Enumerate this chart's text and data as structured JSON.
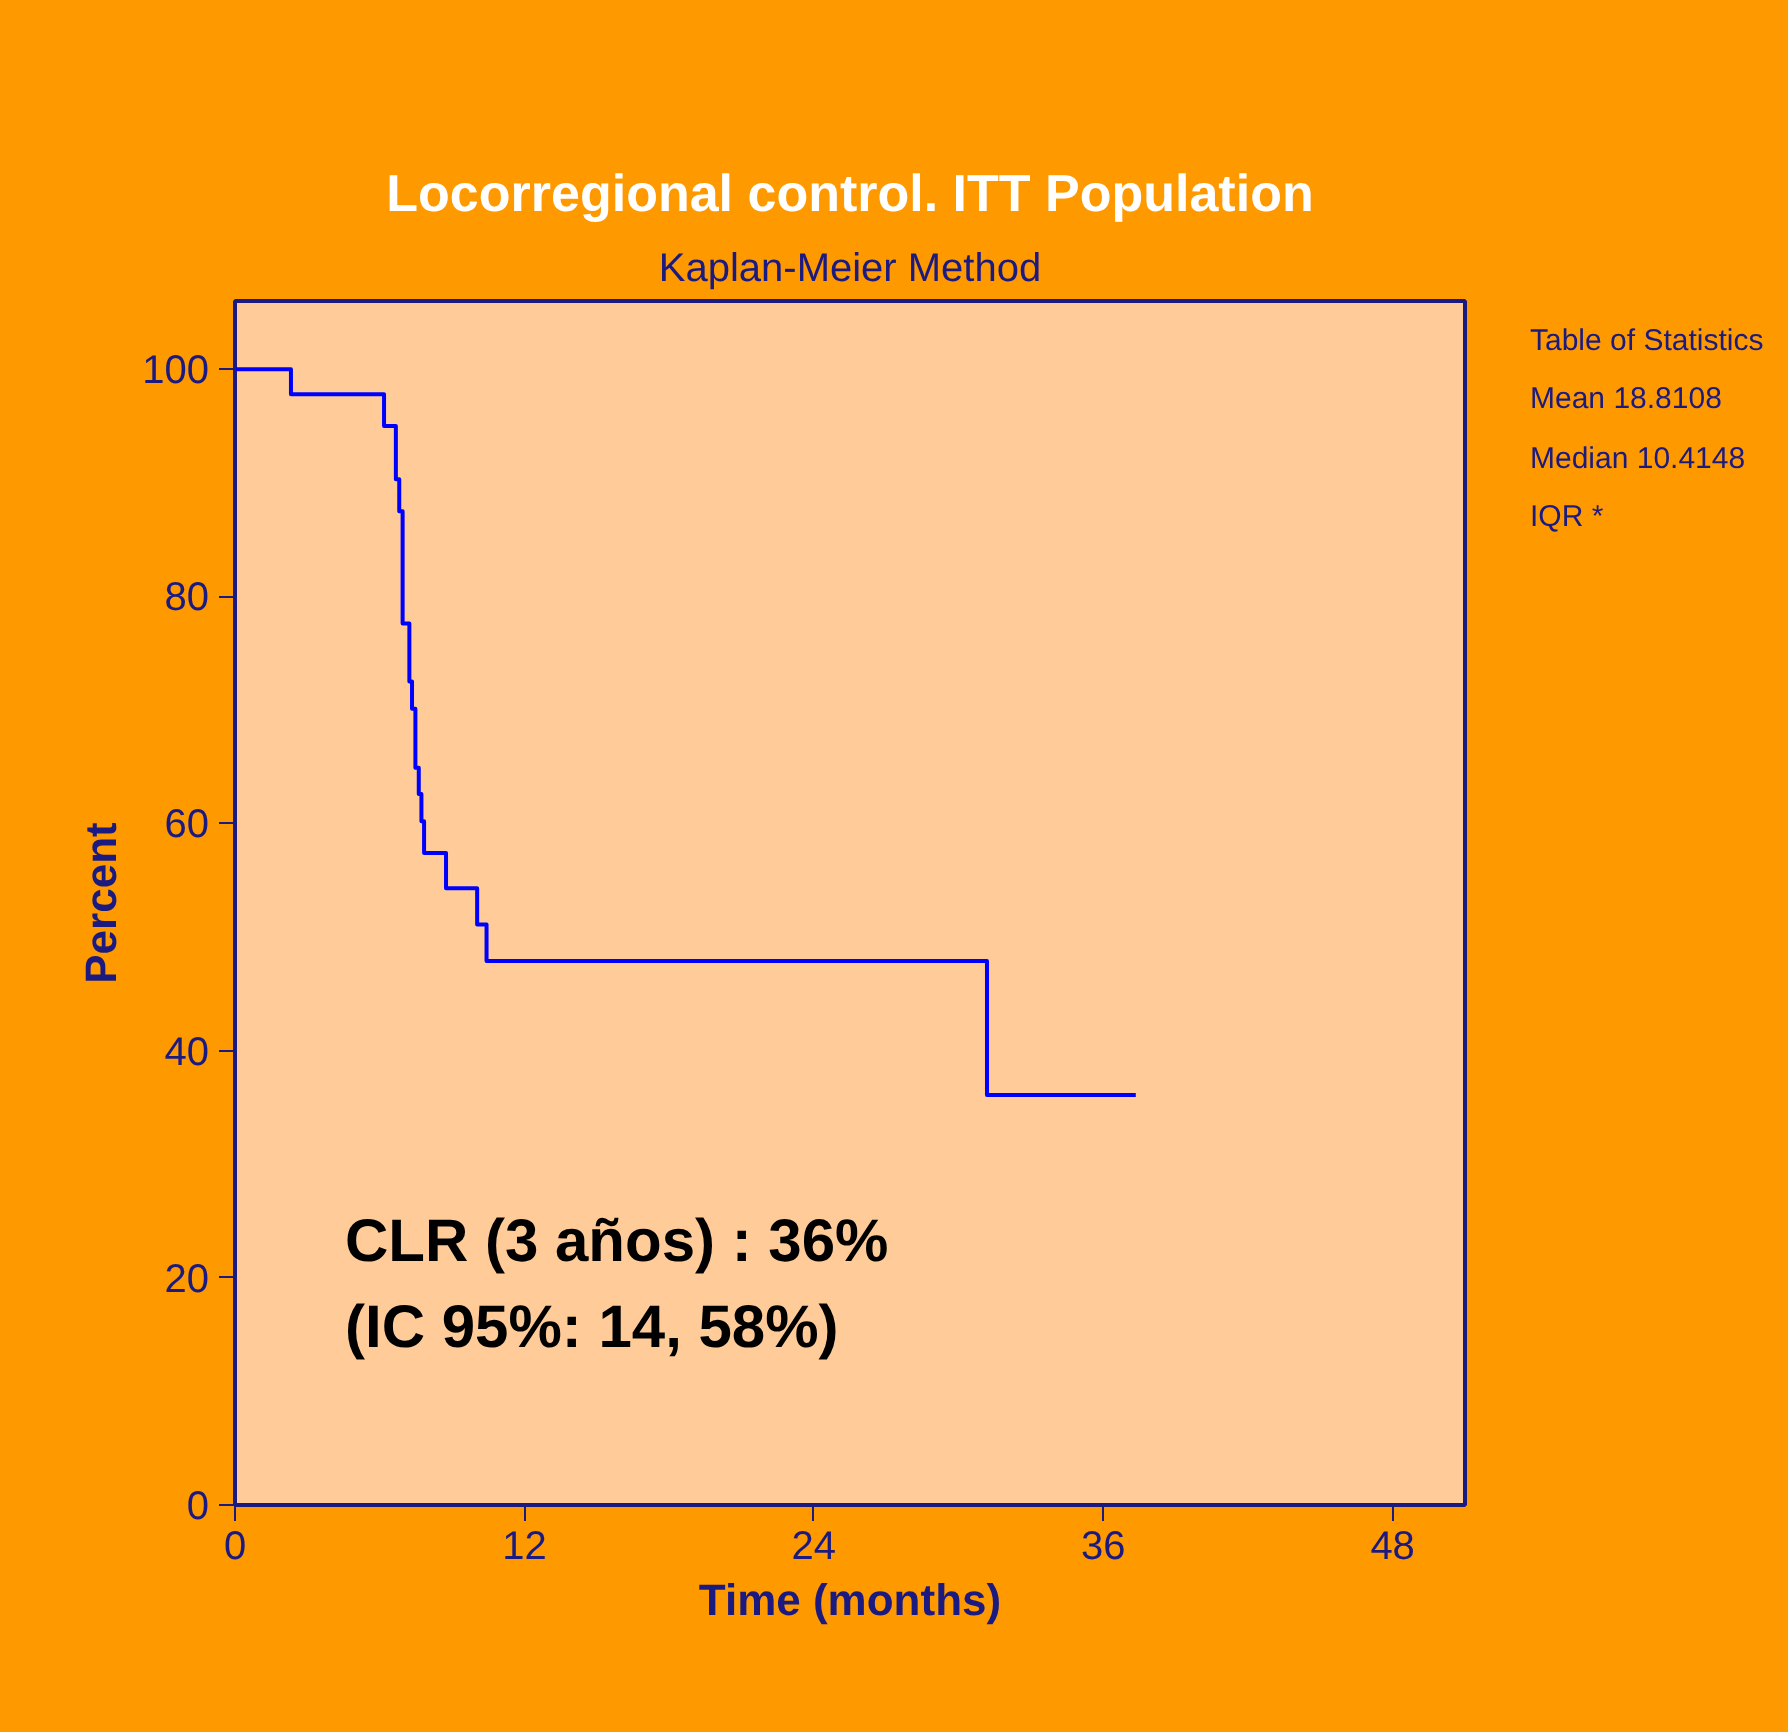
{
  "chart_data": {
    "type": "step",
    "title": "Locorregional control. ITT Population",
    "subtitle": "Kaplan-Meier Method",
    "xlabel": "Time (months)",
    "ylabel": "Percent",
    "x": [
      0,
      2.32,
      6.18,
      6.67,
      6.81,
      6.95,
      7.23,
      7.34,
      7.48,
      7.62,
      7.73,
      7.84,
      8.75,
      10.04,
      10.43,
      31.18,
      37.35
    ],
    "series": [
      {
        "color": "#0000ff",
        "values": [
          100,
          97.8,
          95.0,
          90.3,
          87.5,
          77.6,
          72.5,
          70.1,
          64.9,
          62.6,
          60.2,
          57.4,
          54.3,
          51.1,
          47.9,
          36.1,
          36.1
        ]
      }
    ],
    "xlim": [
      0,
      51
    ],
    "ylim": [
      0,
      106
    ],
    "xticks": [
      0,
      12,
      24,
      36,
      48
    ],
    "yticks": [
      0,
      20,
      40,
      60,
      80,
      100
    ],
    "line_style": "solid",
    "annotations": [
      "CLR (3 años) : 36%",
      "(IC 95%: 14, 58%)",
      "Table of Statistics",
      "Mean 18.8108",
      "Median 10.4148",
      "IQR *"
    ]
  }
}
